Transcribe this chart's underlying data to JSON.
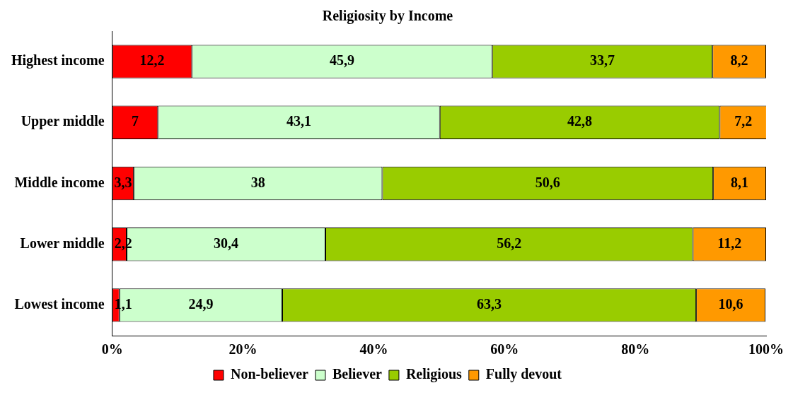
{
  "chart_data": {
    "type": "bar",
    "title": "Religiosity by Income",
    "orientation": "horizontal",
    "stacked": true,
    "legend": "bottom",
    "categories": [
      "Highest income",
      "Upper middle",
      "Middle income",
      "Lower middle",
      "Lowest income"
    ],
    "xlim": [
      0,
      100
    ],
    "xticks": [
      {
        "value": 0,
        "label": "0%"
      },
      {
        "value": 20,
        "label": "20%"
      },
      {
        "value": 40,
        "label": "40%"
      },
      {
        "value": 60,
        "label": "60%"
      },
      {
        "value": 80,
        "label": "80%"
      },
      {
        "value": 100,
        "label": "100%"
      }
    ],
    "series": [
      {
        "name": "Non-believer",
        "color": "#ff0000",
        "values": [
          12.2,
          7,
          3.3,
          2.2,
          1.1
        ],
        "value_labels": [
          "12,2",
          "7",
          "3,3",
          "2,2",
          "1,1"
        ]
      },
      {
        "name": "Believer",
        "color": "#ccffcc",
        "values": [
          45.9,
          43.1,
          38,
          30.4,
          24.9
        ],
        "value_labels": [
          "45,9",
          "43,1",
          "38",
          "30,4",
          "24,9"
        ]
      },
      {
        "name": "Religious",
        "color": "#99cc00",
        "values": [
          33.7,
          42.8,
          50.6,
          56.2,
          63.3
        ],
        "value_labels": [
          "33,7",
          "42,8",
          "50,6",
          "56,2",
          "63,3"
        ]
      },
      {
        "name": "Fully devout",
        "color": "#ff9900",
        "values": [
          8.2,
          7.2,
          8.1,
          11.2,
          10.6
        ],
        "value_labels": [
          "8,2",
          "7,2",
          "8,1",
          "11,2",
          "10,6"
        ]
      }
    ]
  }
}
